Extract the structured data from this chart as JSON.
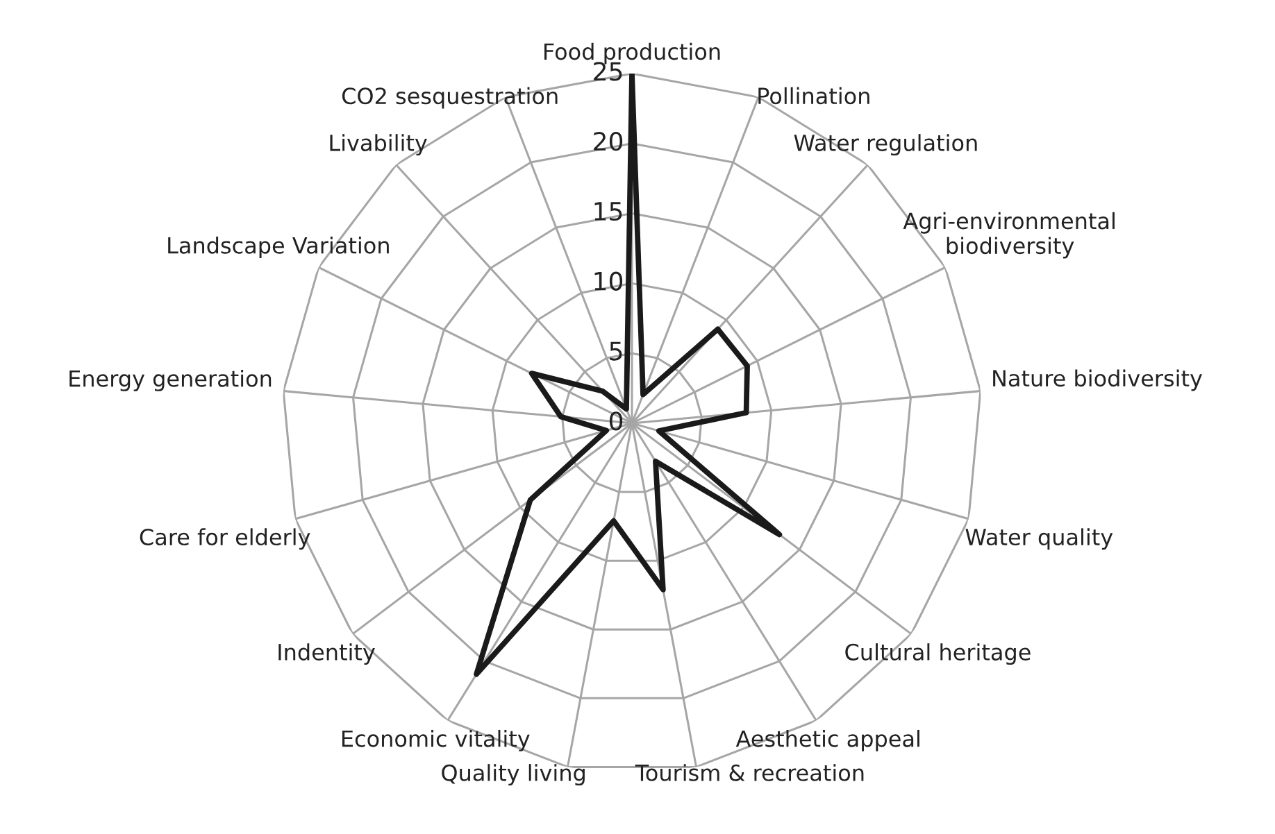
{
  "chart_data": {
    "type": "radar",
    "categories": [
      "Food production",
      "Pollination",
      "Water regulation",
      "Agri-environmental\nbiodiversity",
      "Nature biodiversity",
      "Water quality",
      "Cultural heritage",
      "Aesthetic appeal",
      "Tourism & recreation",
      "Quality living",
      "Economic vitality",
      "Indentity",
      "Care for elderly",
      "Energy generation",
      "Landscape Variation",
      "Livability",
      "CO2 sesquestration"
    ],
    "series": [
      {
        "color": "#1a1a1a",
        "values": [
          25,
          2.2,
          9.1,
          9.2,
          8.2,
          2.0,
          13.2,
          3.2,
          12.1,
          7.1,
          21.1,
          9.1,
          1.9,
          5.1,
          8.0,
          3.1,
          1.1
        ]
      }
    ],
    "ylim": [
      0,
      25
    ],
    "yticks": [
      0,
      5,
      10,
      15,
      20,
      25
    ],
    "grid": true,
    "marker": "none",
    "line_style": "solid"
  }
}
